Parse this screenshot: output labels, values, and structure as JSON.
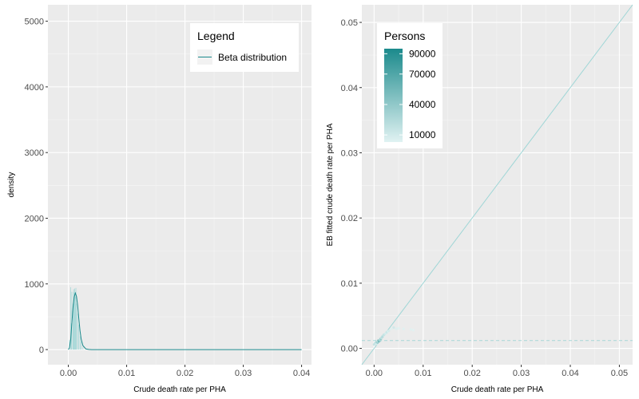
{
  "chart_data": [
    {
      "type": "area",
      "xlabel": "Crude death rate per PHA",
      "ylabel": "density",
      "xlim": [
        -0.0035,
        0.0417
      ],
      "ylim": [
        -230,
        5250
      ],
      "x_ticks": [
        "0.00",
        "0.01",
        "0.02",
        "0.03",
        "0.04"
      ],
      "x_tick_values": [
        0,
        0.01,
        0.02,
        0.03,
        0.04
      ],
      "y_ticks": [
        "0",
        "1000",
        "2000",
        "3000",
        "4000",
        "5000"
      ],
      "y_tick_values": [
        0,
        1000,
        2000,
        3000,
        4000,
        5000
      ],
      "grid": true,
      "legend": {
        "title": "Legend",
        "placement": "top-right",
        "entries": [
          {
            "label": "Beta distribution",
            "color": "#1b8a8c"
          }
        ]
      },
      "histogram": {
        "color": "#a7d8d8",
        "bins": [
          [
            0.0002,
            150
          ],
          [
            0.0004,
            950
          ],
          [
            0.0005,
            400
          ],
          [
            0.0006,
            880
          ],
          [
            0.0008,
            700
          ],
          [
            0.0009,
            920
          ],
          [
            0.001,
            870
          ],
          [
            0.0011,
            930
          ],
          [
            0.0012,
            800
          ],
          [
            0.0013,
            940
          ],
          [
            0.0014,
            700
          ],
          [
            0.0016,
            550
          ],
          [
            0.0018,
            380
          ],
          [
            0.002,
            200
          ],
          [
            0.0022,
            120
          ],
          [
            0.0025,
            40
          ]
        ]
      },
      "series": [
        {
          "color": "#1b8a8c",
          "points": [
            [
              0.0,
              0
            ],
            [
              0.0002,
              30
            ],
            [
              0.0004,
              150
            ],
            [
              0.0006,
              400
            ],
            [
              0.0008,
              640
            ],
            [
              0.001,
              800
            ],
            [
              0.0012,
              860
            ],
            [
              0.0014,
              810
            ],
            [
              0.0016,
              670
            ],
            [
              0.0018,
              470
            ],
            [
              0.002,
              290
            ],
            [
              0.0022,
              160
            ],
            [
              0.0025,
              60
            ],
            [
              0.003,
              10
            ],
            [
              0.0035,
              2
            ],
            [
              0.004,
              0
            ],
            [
              0.01,
              0
            ],
            [
              0.02,
              0
            ],
            [
              0.03,
              0
            ],
            [
              0.04,
              0
            ]
          ]
        }
      ]
    },
    {
      "type": "scatter",
      "xlabel": "Crude death rate per PHA",
      "ylabel": "EB fitted crude death rate per PHA",
      "xlim": [
        -0.0025,
        0.0527
      ],
      "ylim": [
        -0.0025,
        0.0527
      ],
      "x_ticks": [
        "0.00",
        "0.01",
        "0.02",
        "0.03",
        "0.04",
        "0.05"
      ],
      "x_tick_values": [
        0,
        0.01,
        0.02,
        0.03,
        0.04,
        0.05
      ],
      "y_ticks": [
        "0.00",
        "0.01",
        "0.02",
        "0.03",
        "0.04",
        "0.05"
      ],
      "y_tick_values": [
        0,
        0.01,
        0.02,
        0.03,
        0.04,
        0.05
      ],
      "grid": true,
      "reference_line": {
        "slope": 1,
        "intercept": 0,
        "color": "#9fd6d6"
      },
      "hline": {
        "y": 0.0012,
        "color": "#a7d8d8",
        "style": "dashed"
      },
      "legend": {
        "title": "Persons",
        "placement": "top-left",
        "type": "colorbar",
        "low_color": "#e0f2f2",
        "high_color": "#1b8a8c",
        "range": [
          3000,
          95000
        ],
        "labels": [
          "90000",
          "70000",
          "40000",
          "10000"
        ],
        "label_values": [
          90000,
          70000,
          40000,
          10000
        ]
      },
      "points": [
        [
          0.0,
          0.0006,
          20000
        ],
        [
          0.0002,
          0.0008,
          15000
        ],
        [
          0.0004,
          0.0009,
          30000
        ],
        [
          0.0005,
          0.0007,
          8000
        ],
        [
          0.0006,
          0.001,
          25000
        ],
        [
          0.0007,
          0.0009,
          40000
        ],
        [
          0.0008,
          0.0011,
          12000
        ],
        [
          0.0009,
          0.0012,
          55000
        ],
        [
          0.001,
          0.0011,
          60000
        ],
        [
          0.0011,
          0.0013,
          18000
        ],
        [
          0.0012,
          0.0012,
          35000
        ],
        [
          0.0013,
          0.0014,
          22000
        ],
        [
          0.0014,
          0.0015,
          45000
        ],
        [
          0.0015,
          0.0016,
          9000
        ],
        [
          0.0016,
          0.0017,
          28000
        ],
        [
          0.0017,
          0.0018,
          14000
        ],
        [
          0.0018,
          0.0019,
          33000
        ],
        [
          0.0019,
          0.002,
          6000
        ],
        [
          0.002,
          0.0021,
          20000
        ],
        [
          0.0022,
          0.0022,
          11000
        ],
        [
          0.0024,
          0.0023,
          7000
        ],
        [
          0.0026,
          0.0025,
          16000
        ],
        [
          0.0028,
          0.0026,
          5000
        ],
        [
          0.003,
          0.0027,
          9000
        ],
        [
          0.0035,
          0.003,
          4000
        ],
        [
          0.004,
          0.0032,
          12000
        ],
        [
          0.0045,
          0.003,
          5000
        ],
        [
          0.005,
          0.0031,
          3500
        ],
        [
          0.006,
          0.003,
          4000
        ],
        [
          0.0075,
          0.0029,
          3500
        ],
        [
          0.008,
          0.0028,
          3000
        ]
      ]
    }
  ]
}
